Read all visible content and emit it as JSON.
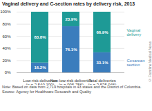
{
  "chart_data": {
    "type": "bar",
    "stacked": true,
    "title": "Vaginal delivery and C-section rates by delivery risk, 2013",
    "note": "Note: Based on data from 2,719 hospitals in 43 states and the District of Columbia.",
    "source": "Source: Agency for Healthcare Research and Quality",
    "credit": "© Frontline Medical News",
    "categories": [
      "Low-risk deliveries\n(n = 2,540,190)",
      "Non-low-risk deliveries\n(n = 995,756)",
      "Total deliveries\n(n = 3,535,946)"
    ],
    "series": [
      {
        "name": "Cesarean section",
        "color": "#3b7dbd",
        "values": [
          16.2,
          76.1,
          33.1
        ],
        "value_labels": [
          "16.2%",
          "76.1%",
          "33.1%"
        ]
      },
      {
        "name": "Vaginal delivery",
        "color": "#1e9a96",
        "values": [
          83.8,
          23.9,
          66.9
        ],
        "value_labels": [
          "83.8%",
          "23.9%",
          "66.9%"
        ]
      }
    ],
    "ylim": [
      0,
      100
    ],
    "yticks": [
      {
        "value": 0,
        "label": "0%"
      },
      {
        "value": 20,
        "label": "20%"
      },
      {
        "value": 40,
        "label": "40%"
      },
      {
        "value": 60,
        "label": "60%"
      },
      {
        "value": 80,
        "label": "80%"
      },
      {
        "value": 100,
        "label": "100%"
      }
    ],
    "grid": true,
    "legend": "right",
    "data_labels": true
  }
}
